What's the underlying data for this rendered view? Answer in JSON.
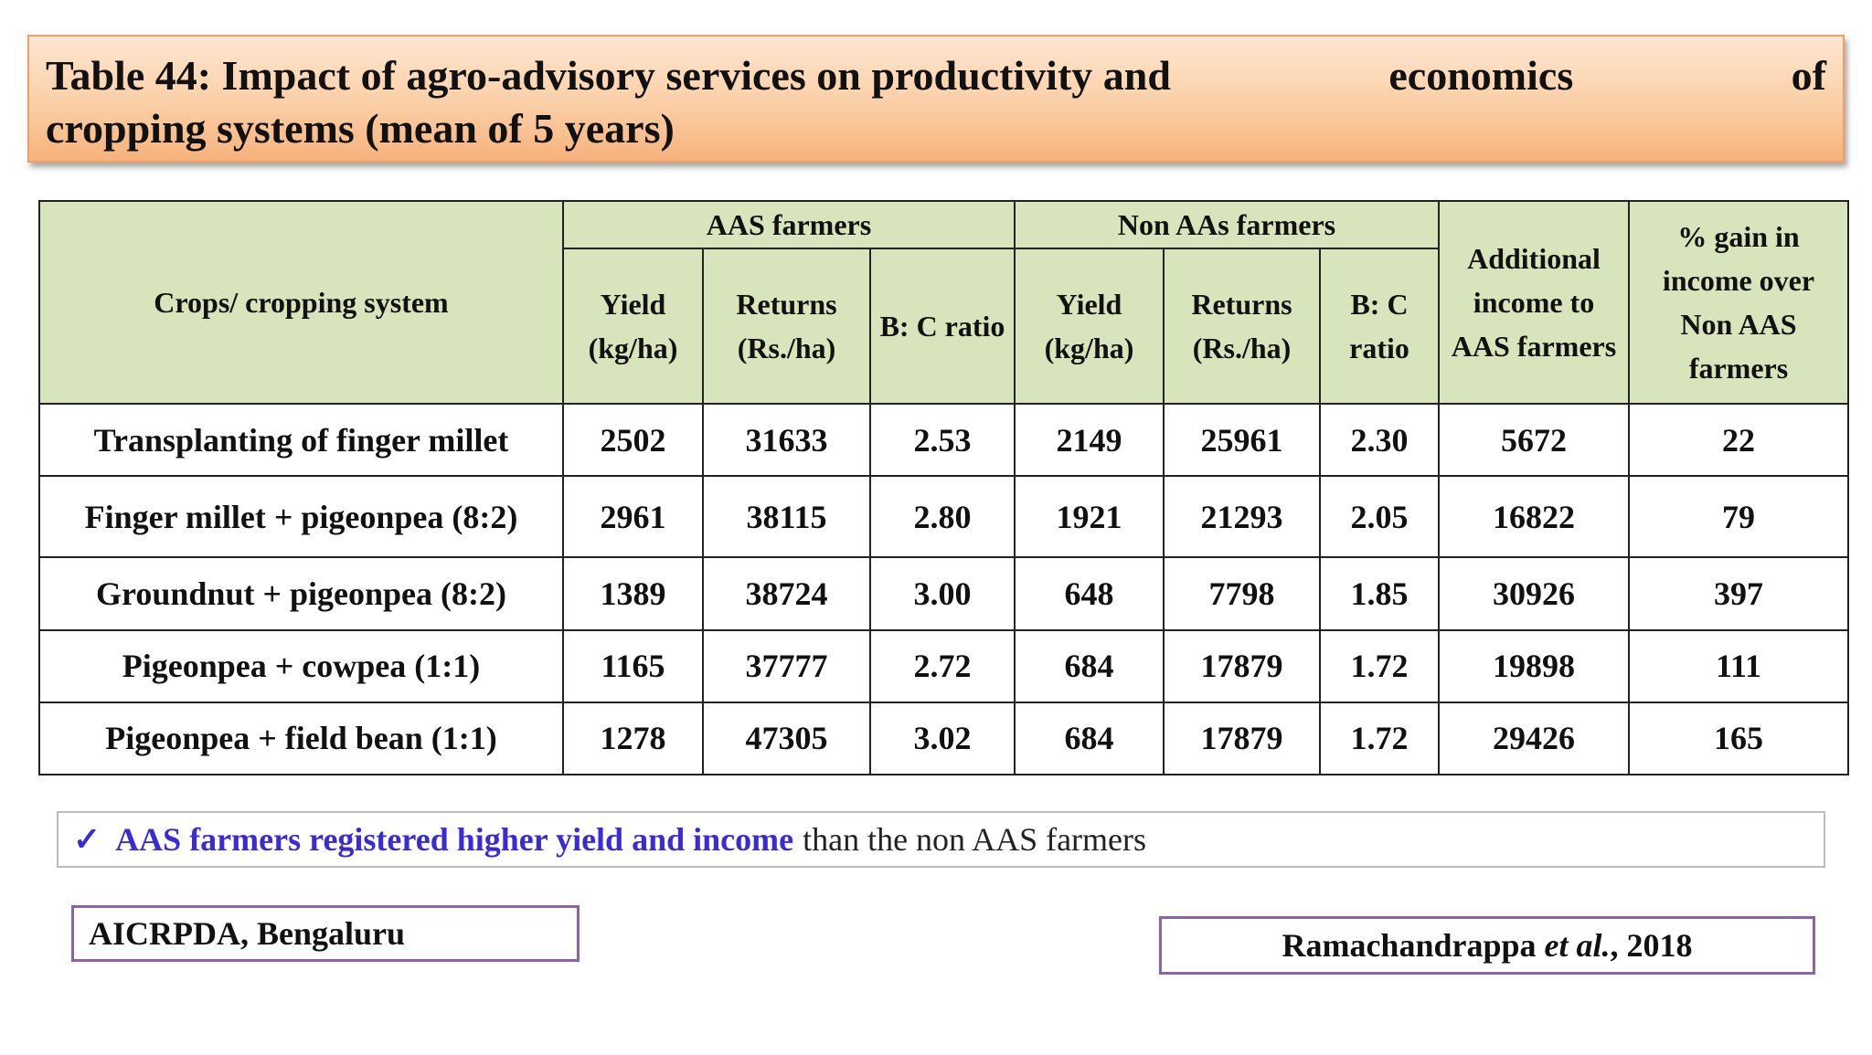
{
  "title": {
    "line1_part1": "Table 44: Impact of agro-advisory services on productivity and",
    "line1_part2": "economics",
    "line1_part3": "of",
    "line2": "cropping systems (mean of 5 years)"
  },
  "table": {
    "header_crops": "Crops/ cropping system",
    "group_aas": "AAS farmers",
    "group_non_aas": "Non AAs farmers",
    "header_additional": "Additional income to AAS farmers",
    "header_gain": "% gain in income over Non AAS farmers",
    "sub_yield": "Yield (kg/ha)",
    "sub_returns": "Returns (Rs./ha)",
    "sub_bc": "B: C ratio",
    "rows": [
      [
        "Transplanting of finger millet",
        "2502",
        "31633",
        "2.53",
        "2149",
        "25961",
        "2.30",
        "5672",
        "22"
      ],
      [
        "Finger millet + pigeonpea (8:2)",
        "2961",
        "38115",
        "2.80",
        "1921",
        "21293",
        "2.05",
        "16822",
        "79"
      ],
      [
        "Groundnut + pigeonpea (8:2)",
        "1389",
        "38724",
        "3.00",
        "648",
        "7798",
        "1.85",
        "30926",
        "397"
      ],
      [
        "Pigeonpea + cowpea (1:1)",
        "1165",
        "37777",
        "2.72",
        "684",
        "17879",
        "1.72",
        "19898",
        "111"
      ],
      [
        "Pigeonpea + field bean (1:1)",
        "1278",
        "47305",
        "3.02",
        "684",
        "17879",
        "1.72",
        "29426",
        "165"
      ]
    ]
  },
  "note": {
    "check_icon": "check-icon",
    "highlight": "AAS farmers registered higher yield and income",
    "rest": "than the non AAS farmers"
  },
  "source": "AICRPDA, Bengaluru",
  "reference": {
    "author": "Ramachandrappa",
    "etal": "et al.",
    "year": ", 2018"
  }
}
